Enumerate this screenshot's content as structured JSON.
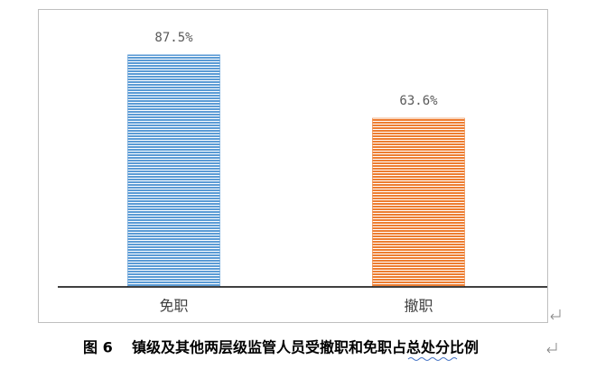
{
  "chart_data": {
    "type": "bar",
    "categories": [
      "免职",
      "撤职"
    ],
    "values": [
      87.5,
      63.6
    ],
    "value_labels": [
      "87.5%",
      "63.6%"
    ],
    "colors": [
      "#5b9bd5",
      "#ed7d31"
    ],
    "ylim": [
      0,
      100
    ]
  },
  "caption": {
    "label": "图 6",
    "text": "镇级及其他两层级监管人员受撤职和免职占总处分比例"
  }
}
